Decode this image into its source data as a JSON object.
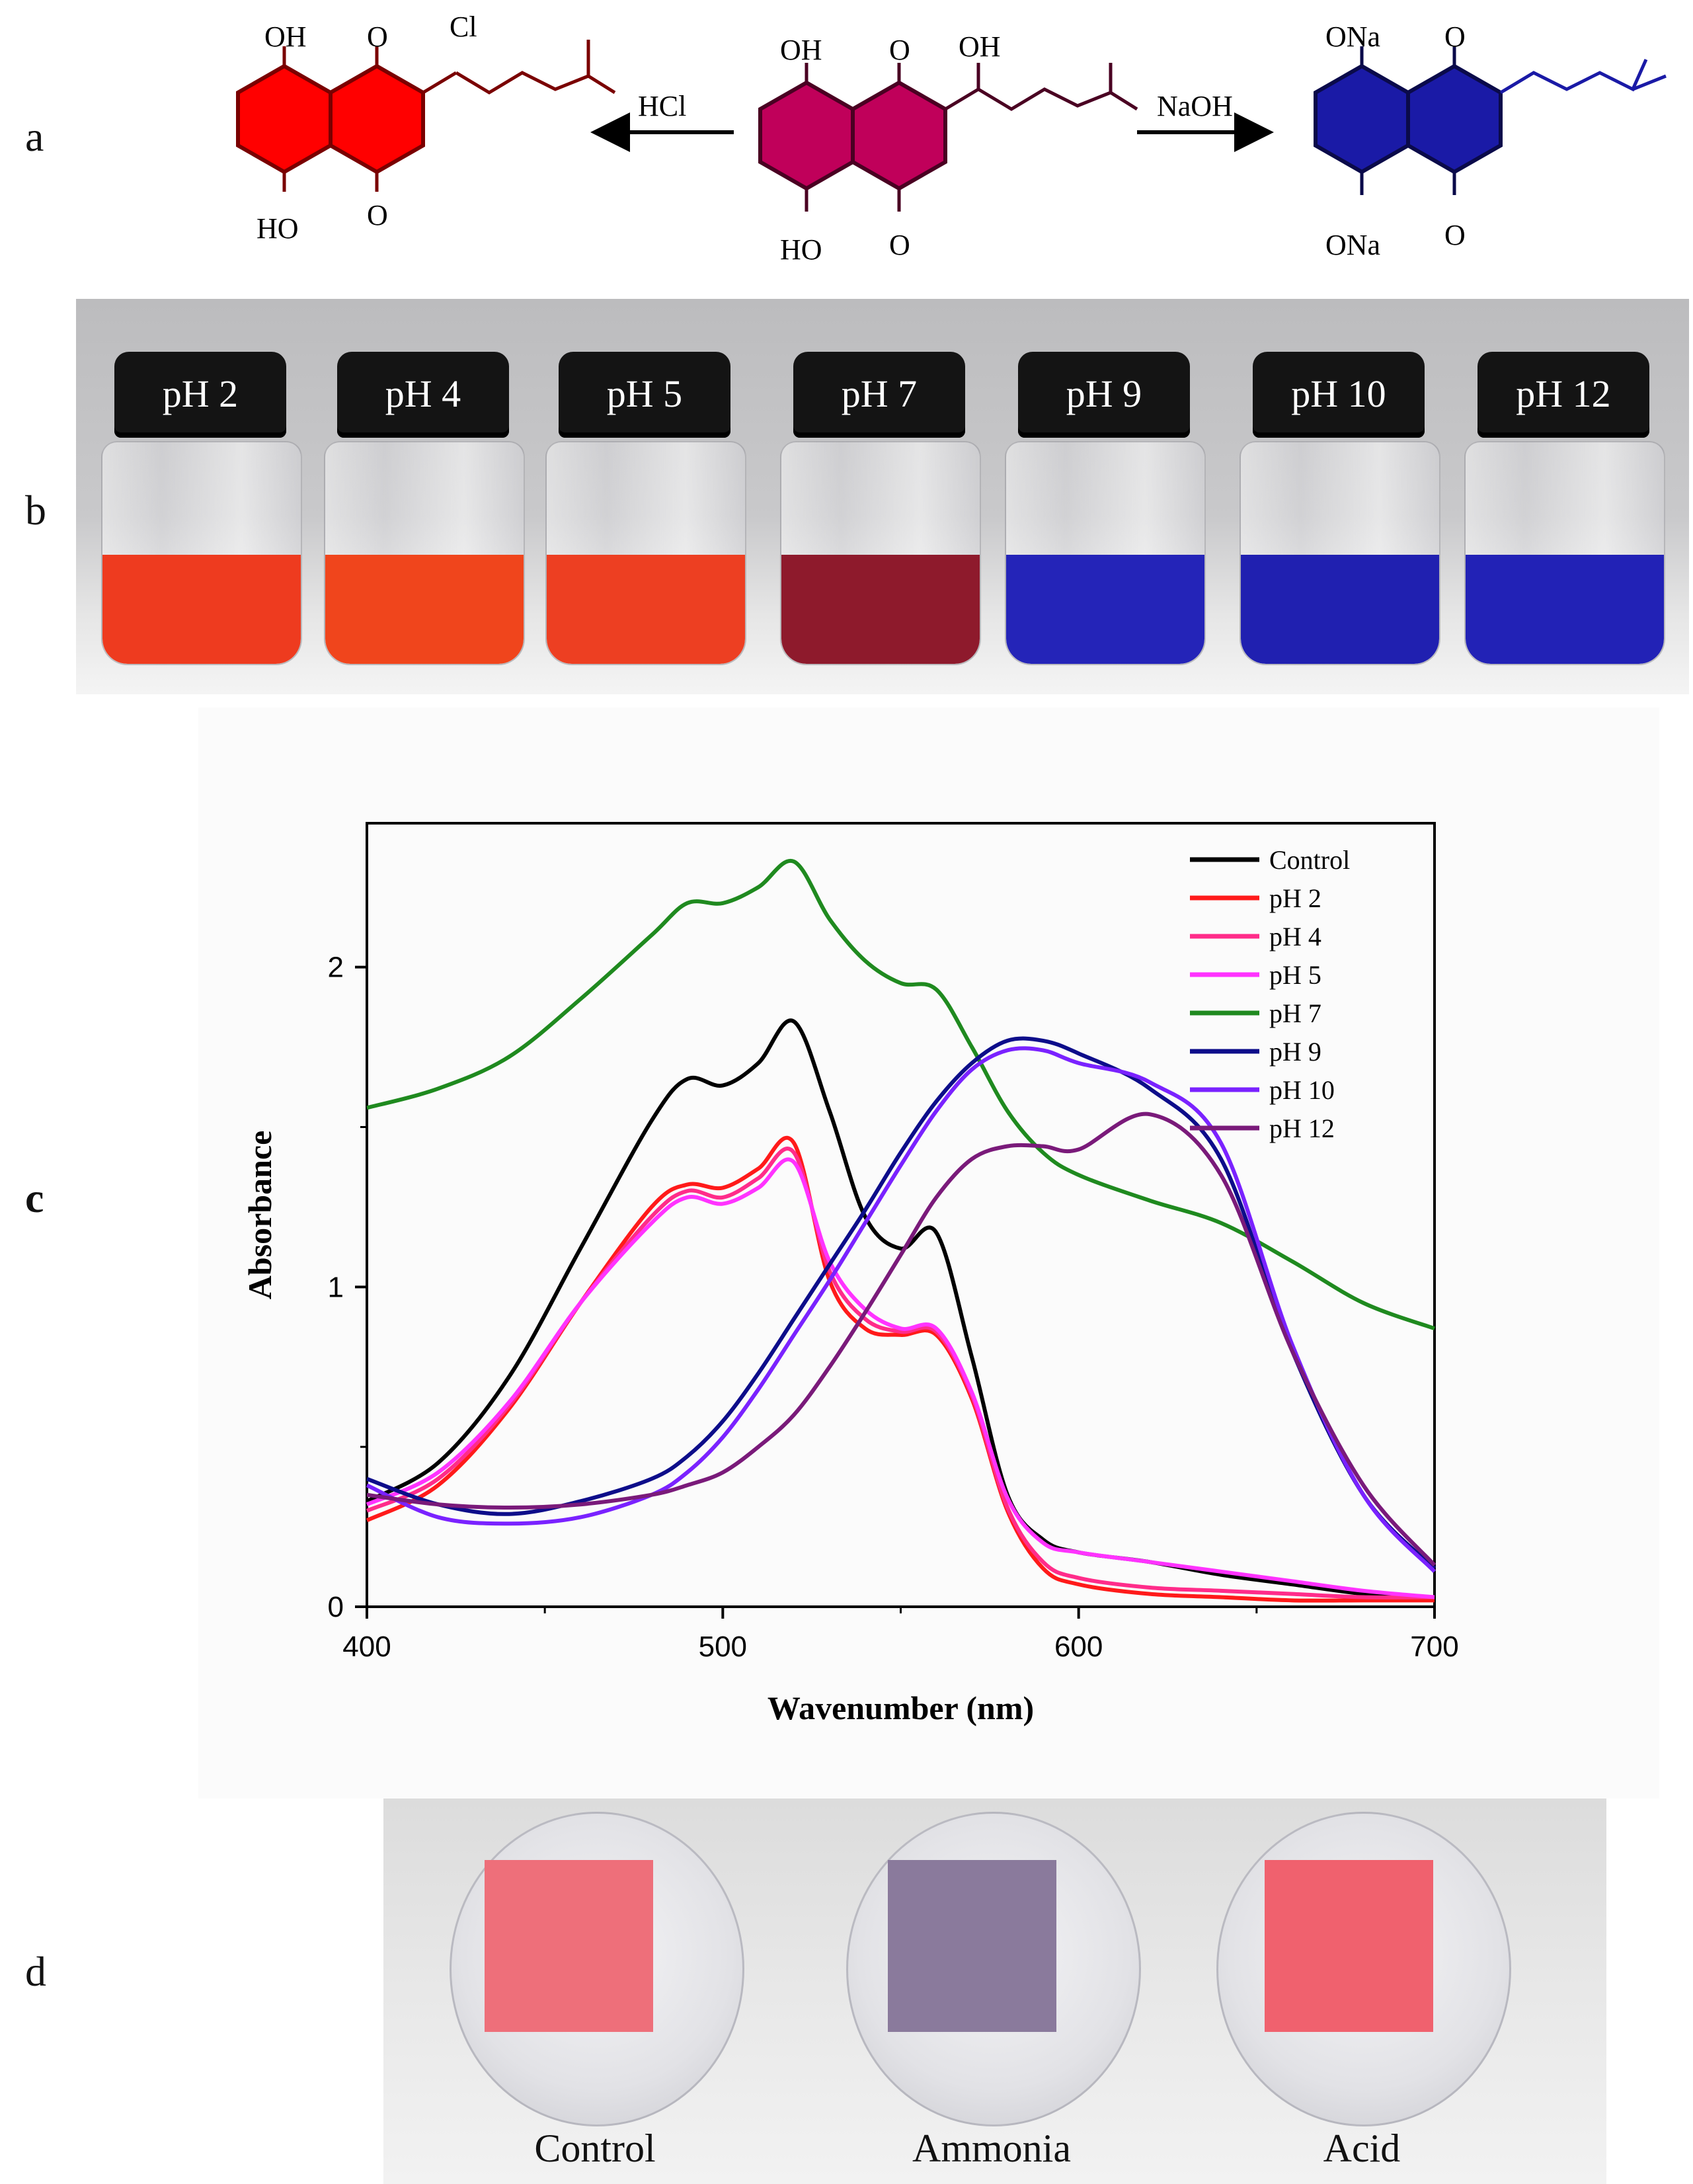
{
  "panel_labels": {
    "a": "a",
    "b": "b",
    "c": "c",
    "d": "d"
  },
  "panel_a": {
    "left_molecule": {
      "top_left": "OH",
      "bottom_left": "HO",
      "top_carbonyl": "O",
      "bottom_carbonyl": "O",
      "substituent": "Cl",
      "color": "#ff0000"
    },
    "center_molecule": {
      "top_left": "OH",
      "bottom_left": "HO",
      "top_carbonyl": "O",
      "bottom_carbonyl": "O",
      "substituent": "OH",
      "color": "#c0005a"
    },
    "right_molecule": {
      "top_left": "ONa",
      "bottom_left": "ONa",
      "top_carbonyl": "O",
      "bottom_carbonyl": "O",
      "color": "#1a1aa6"
    },
    "left_arrow_label": "HCl",
    "right_arrow_label": "NaOH"
  },
  "panel_b": {
    "vials": [
      {
        "label": "pH 2",
        "color": "#ee3b1f"
      },
      {
        "label": "pH 4",
        "color": "#f0451c"
      },
      {
        "label": "pH 5",
        "color": "#ed3f22"
      },
      {
        "label": "pH 7",
        "color": "#8e1a2c"
      },
      {
        "label": "pH 9",
        "color": "#2424b8"
      },
      {
        "label": "pH 10",
        "color": "#2020b0"
      },
      {
        "label": "pH 12",
        "color": "#2222b6"
      }
    ]
  },
  "chart_data": {
    "type": "line",
    "title": "",
    "xlabel": "Wavenumber (nm)",
    "ylabel": "Absorbance",
    "xlim": [
      400,
      700
    ],
    "ylim": [
      0,
      2.45
    ],
    "xticks": [
      400,
      500,
      600,
      700
    ],
    "yticks": [
      0,
      1,
      2
    ],
    "legend_position": "top-right",
    "series": [
      {
        "name": "Control",
        "color": "#000000",
        "x": [
          400,
          420,
          440,
          460,
          480,
          490,
          500,
          510,
          520,
          530,
          540,
          550,
          560,
          570,
          580,
          590,
          600,
          620,
          640,
          660,
          680,
          700
        ],
        "y": [
          0.33,
          0.45,
          0.72,
          1.12,
          1.52,
          1.65,
          1.63,
          1.7,
          1.83,
          1.55,
          1.22,
          1.12,
          1.17,
          0.78,
          0.35,
          0.21,
          0.17,
          0.14,
          0.1,
          0.07,
          0.04,
          0.02
        ]
      },
      {
        "name": "pH 2",
        "color": "#ff1a1a",
        "x": [
          400,
          420,
          440,
          460,
          480,
          490,
          500,
          510,
          520,
          530,
          540,
          550,
          560,
          570,
          580,
          590,
          600,
          620,
          640,
          660,
          680,
          700
        ],
        "y": [
          0.27,
          0.38,
          0.62,
          0.95,
          1.25,
          1.32,
          1.31,
          1.37,
          1.45,
          1.02,
          0.87,
          0.85,
          0.85,
          0.65,
          0.3,
          0.12,
          0.07,
          0.04,
          0.03,
          0.02,
          0.02,
          0.02
        ]
      },
      {
        "name": "pH 4",
        "color": "#ff2c8a",
        "x": [
          400,
          420,
          440,
          460,
          480,
          490,
          500,
          510,
          520,
          530,
          540,
          550,
          560,
          570,
          580,
          590,
          600,
          620,
          640,
          660,
          680,
          700
        ],
        "y": [
          0.3,
          0.4,
          0.63,
          0.95,
          1.22,
          1.3,
          1.28,
          1.34,
          1.42,
          1.05,
          0.9,
          0.86,
          0.86,
          0.66,
          0.31,
          0.14,
          0.09,
          0.06,
          0.05,
          0.04,
          0.03,
          0.03
        ]
      },
      {
        "name": "pH 5",
        "color": "#ff33ff",
        "x": [
          400,
          420,
          440,
          460,
          480,
          490,
          500,
          510,
          520,
          530,
          540,
          550,
          560,
          570,
          580,
          590,
          600,
          620,
          640,
          660,
          680,
          700
        ],
        "y": [
          0.32,
          0.42,
          0.64,
          0.95,
          1.2,
          1.28,
          1.26,
          1.31,
          1.39,
          1.08,
          0.93,
          0.87,
          0.87,
          0.67,
          0.34,
          0.2,
          0.17,
          0.14,
          0.11,
          0.08,
          0.05,
          0.03
        ]
      },
      {
        "name": "pH 7",
        "color": "#1f8a1f",
        "x": [
          400,
          420,
          440,
          460,
          480,
          490,
          500,
          510,
          520,
          530,
          540,
          550,
          560,
          570,
          580,
          590,
          600,
          620,
          640,
          660,
          680,
          700
        ],
        "y": [
          1.56,
          1.62,
          1.72,
          1.9,
          2.1,
          2.2,
          2.2,
          2.25,
          2.33,
          2.15,
          2.02,
          1.95,
          1.93,
          1.75,
          1.55,
          1.42,
          1.35,
          1.27,
          1.2,
          1.08,
          0.95,
          0.87
        ]
      },
      {
        "name": "pH 9",
        "color": "#0d0d8a",
        "x": [
          400,
          420,
          440,
          460,
          480,
          490,
          500,
          510,
          520,
          530,
          540,
          550,
          560,
          570,
          580,
          590,
          600,
          620,
          640,
          660,
          680,
          700
        ],
        "y": [
          0.4,
          0.32,
          0.29,
          0.33,
          0.4,
          0.47,
          0.58,
          0.73,
          0.9,
          1.07,
          1.24,
          1.42,
          1.58,
          1.7,
          1.77,
          1.77,
          1.73,
          1.62,
          1.4,
          0.8,
          0.35,
          0.12
        ]
      },
      {
        "name": "pH 10",
        "color": "#7a22ff",
        "x": [
          400,
          420,
          440,
          460,
          480,
          490,
          500,
          510,
          520,
          530,
          540,
          550,
          560,
          570,
          580,
          590,
          600,
          620,
          640,
          660,
          680,
          700
        ],
        "y": [
          0.38,
          0.28,
          0.26,
          0.28,
          0.35,
          0.42,
          0.53,
          0.68,
          0.85,
          1.02,
          1.2,
          1.38,
          1.55,
          1.68,
          1.74,
          1.74,
          1.7,
          1.64,
          1.45,
          0.82,
          0.35,
          0.11
        ]
      },
      {
        "name": "pH 12",
        "color": "#7a1a7a",
        "x": [
          400,
          420,
          440,
          460,
          480,
          490,
          500,
          510,
          520,
          530,
          540,
          550,
          560,
          570,
          580,
          590,
          600,
          620,
          640,
          660,
          680,
          700
        ],
        "y": [
          0.35,
          0.32,
          0.31,
          0.32,
          0.35,
          0.38,
          0.42,
          0.5,
          0.6,
          0.75,
          0.92,
          1.1,
          1.28,
          1.4,
          1.44,
          1.44,
          1.43,
          1.54,
          1.35,
          0.8,
          0.38,
          0.13
        ]
      }
    ]
  },
  "panel_d": {
    "dishes": [
      {
        "label": "Control",
        "pad_color": "#ee6f7a"
      },
      {
        "label": "Ammonia",
        "pad_color": "#8a7a9c"
      },
      {
        "label": "Acid",
        "pad_color": "#f0616e"
      }
    ]
  }
}
